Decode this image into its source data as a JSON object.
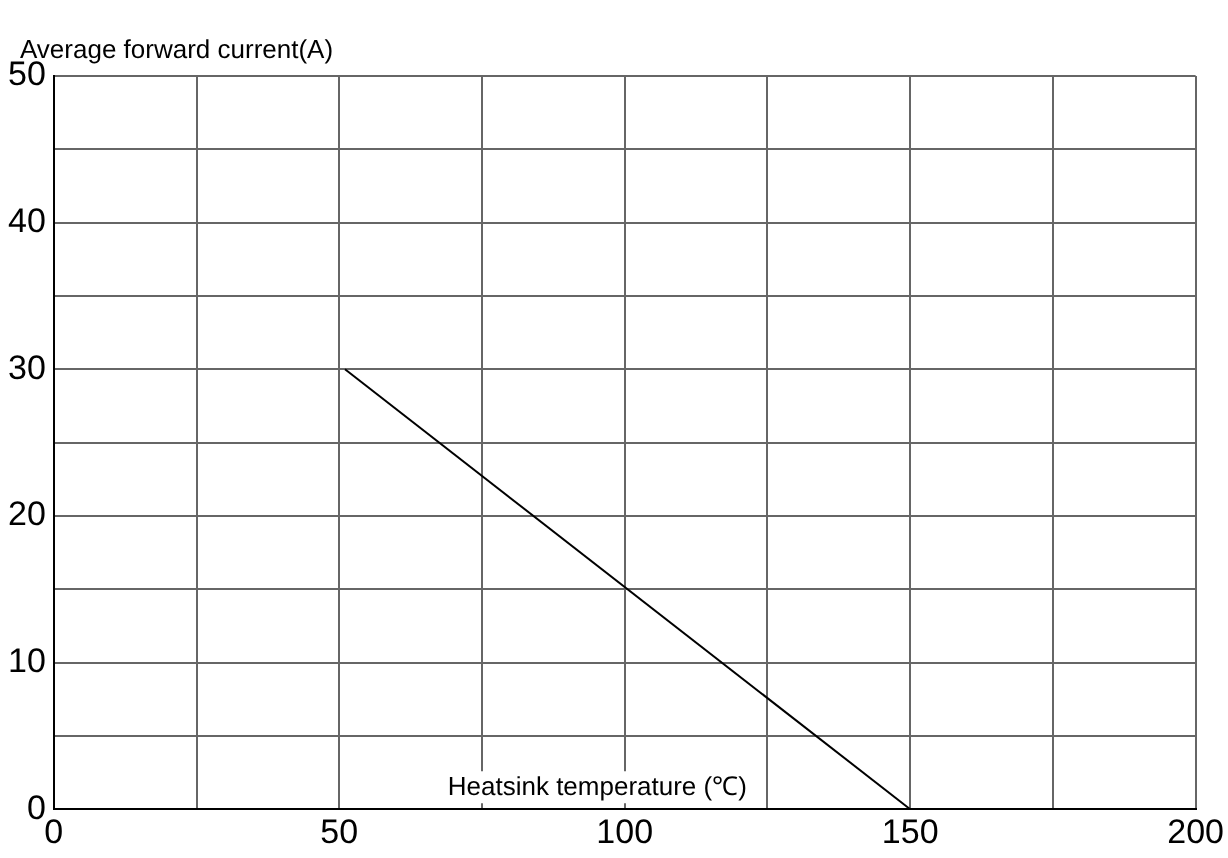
{
  "chart_data": {
    "type": "line",
    "ylabel": "Average forward current(A)",
    "xlabel": "Heatsink temperature (℃)",
    "series": [
      {
        "color": "#000000",
        "x": [
          51,
          150
        ],
        "values": [
          30,
          0
        ]
      }
    ],
    "xlim": [
      0,
      200
    ],
    "ylim": [
      0,
      50
    ],
    "xticks": [
      0,
      {
        "value": 25,
        "label": null
      },
      50,
      {
        "value": 75,
        "label": null
      },
      100,
      {
        "value": 125,
        "label": null
      },
      150,
      {
        "value": 175,
        "label": null
      },
      200
    ],
    "yticks": [
      0,
      {
        "value": 5,
        "label": null
      },
      10,
      {
        "value": 15,
        "label": null
      },
      20,
      {
        "value": 25,
        "label": null
      },
      30,
      {
        "value": 35,
        "label": null
      },
      40,
      {
        "value": 45,
        "label": null
      },
      50
    ],
    "grid": true,
    "legend": false,
    "marker": "none",
    "line_style": "solid"
  }
}
